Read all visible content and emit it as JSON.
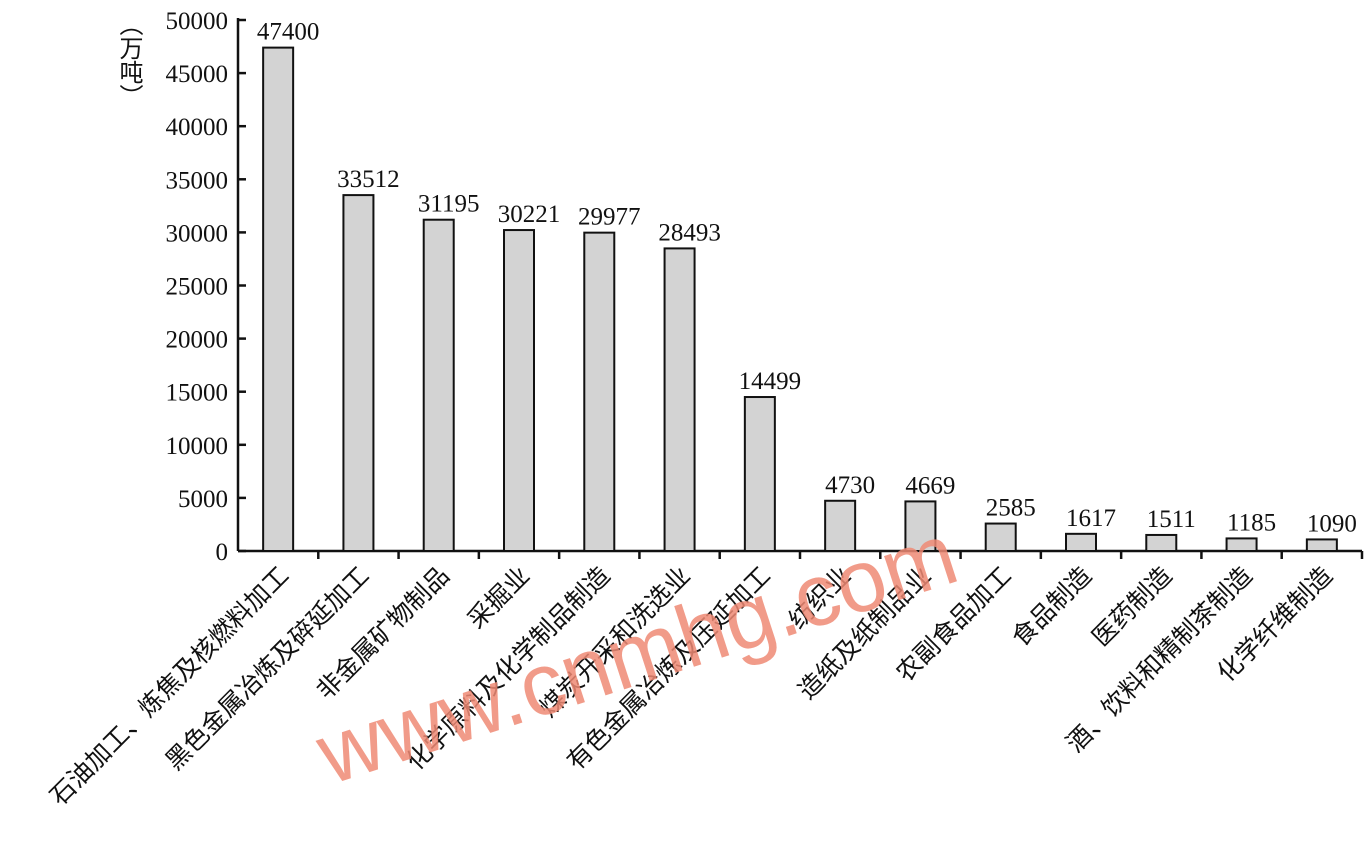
{
  "chart_data": {
    "type": "bar",
    "y_label": "（万吨）",
    "categories": [
      "石油加工、炼焦及核燃料加工",
      "黑色金属冶炼及碎延加工",
      "非金属矿物制品",
      "采掘业",
      "化学原料及化学制品制造",
      "煤炭开采和洗选业",
      "有色金属冶炼及压延加工",
      "纺织业",
      "造纸及纸制品业",
      "农副食品加工",
      "食品制造",
      "医药制造",
      "酒、饮料和精制茶制造",
      "化学纤维制造"
    ],
    "values": [
      47400,
      33512,
      31195,
      30221,
      29977,
      28493,
      14499,
      4730,
      4669,
      2585,
      1617,
      1511,
      1185,
      1090
    ],
    "color": "#d3d3d3",
    "ylim": [
      0,
      50000
    ],
    "yticks": [
      0,
      5000,
      10000,
      15000,
      20000,
      25000,
      30000,
      35000,
      40000,
      45000,
      50000
    ],
    "watermark": "www.cnmhg.com"
  }
}
